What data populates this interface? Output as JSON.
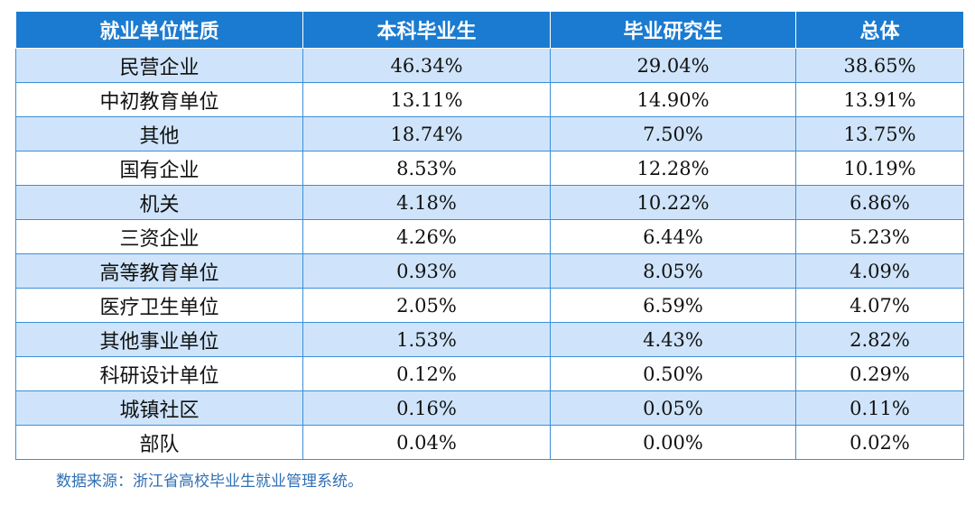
{
  "table": {
    "headers": [
      "就业单位性质",
      "本科毕业生",
      "毕业研究生",
      "总体"
    ],
    "rows": [
      [
        "民营企业",
        "46.34%",
        "29.04%",
        "38.65%"
      ],
      [
        "中初教育单位",
        "13.11%",
        "14.90%",
        "13.91%"
      ],
      [
        "其他",
        "18.74%",
        "7.50%",
        "13.75%"
      ],
      [
        "国有企业",
        "8.53%",
        "12.28%",
        "10.19%"
      ],
      [
        "机关",
        "4.18%",
        "10.22%",
        "6.86%"
      ],
      [
        "三资企业",
        "4.26%",
        "6.44%",
        "5.23%"
      ],
      [
        "高等教育单位",
        "0.93%",
        "8.05%",
        "4.09%"
      ],
      [
        "医疗卫生单位",
        "2.05%",
        "6.59%",
        "4.07%"
      ],
      [
        "其他事业单位",
        "1.53%",
        "4.43%",
        "2.82%"
      ],
      [
        "科研设计单位",
        "0.12%",
        "0.50%",
        "0.29%"
      ],
      [
        "城镇社区",
        "0.16%",
        "0.05%",
        "0.11%"
      ],
      [
        "部队",
        "0.04%",
        "0.00%",
        "0.02%"
      ]
    ]
  },
  "source_note": "数据来源：浙江省高校毕业生就业管理系统。",
  "colors": {
    "header_bg": "#1b7bd0",
    "header_text": "#ffffff",
    "row_stripe": "#cfe4fa",
    "row_plain": "#ffffff",
    "border": "#3a8fd8",
    "source_text": "#2f6fb5"
  }
}
